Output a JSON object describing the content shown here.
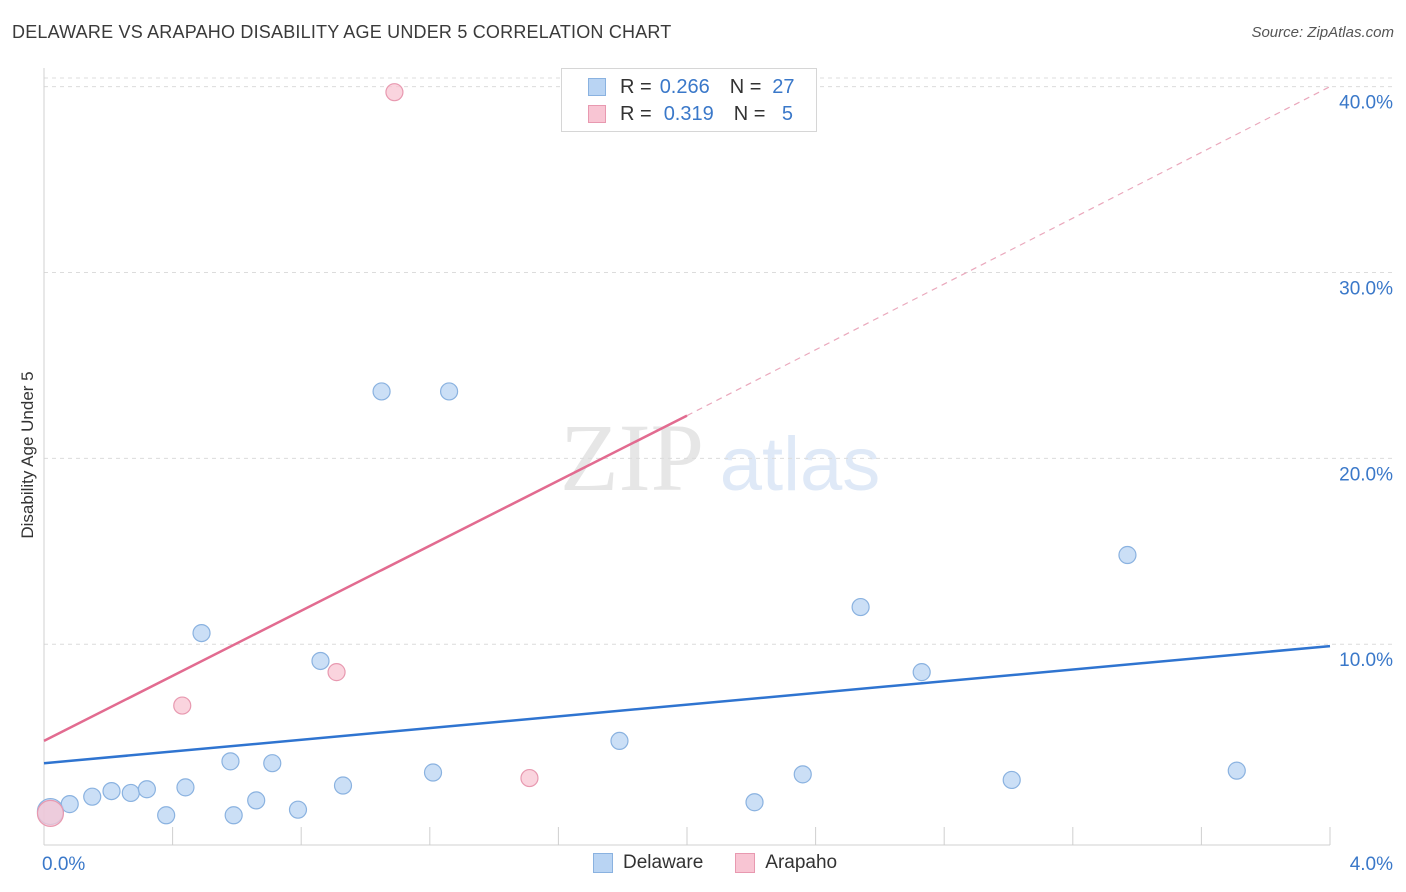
{
  "title": "DELAWARE VS ARAPAHO DISABILITY AGE UNDER 5 CORRELATION CHART",
  "source": "Source: ZipAtlas.com",
  "watermark": {
    "zip": "ZIP",
    "atlas": "atlas"
  },
  "legend": {
    "r_label": "R =",
    "n_label": "N =",
    "rows": [
      {
        "name": "Delaware",
        "r": "0.266",
        "n": "27"
      },
      {
        "name": "Arapaho",
        "r": "0.319",
        "n": "5"
      }
    ]
  },
  "colors": {
    "delaware_fill": "#b9d4f3",
    "delaware_stroke": "#8ab2e0",
    "delaware_line": "#2f74d0",
    "arapaho_fill": "#f8c5d3",
    "arapaho_stroke": "#e899b0",
    "arapaho_line": "#e26b90",
    "axis_text": "#3a78c9",
    "grid": "#dcdcdc"
  },
  "chart_data": {
    "type": "scatter",
    "title": "DELAWARE VS ARAPAHO DISABILITY AGE UNDER 5 CORRELATION CHART",
    "xlabel": "",
    "ylabel": "Disability Age Under 5",
    "xlim": [
      0,
      4.0
    ],
    "ylim": [
      -0.8,
      41.0
    ],
    "x_tick_labels": [
      "0.0%",
      "4.0%"
    ],
    "y_ticks": [
      10,
      20,
      30,
      40
    ],
    "y_tick_labels": [
      "10.0%",
      "20.0%",
      "30.0%",
      "40.0%"
    ],
    "x_minor_ticks": [
      0.4,
      0.8,
      1.2,
      1.6,
      2.0,
      2.4,
      2.8,
      3.2,
      3.6,
      4.0
    ],
    "series": [
      {
        "name": "Delaware",
        "points": [
          {
            "x": 0.02,
            "y": 1.0,
            "big": true
          },
          {
            "x": 0.08,
            "y": 1.4
          },
          {
            "x": 0.15,
            "y": 1.8
          },
          {
            "x": 0.21,
            "y": 2.1
          },
          {
            "x": 0.27,
            "y": 2.0
          },
          {
            "x": 0.32,
            "y": 2.2
          },
          {
            "x": 0.38,
            "y": 0.8
          },
          {
            "x": 0.44,
            "y": 2.3
          },
          {
            "x": 0.49,
            "y": 10.6
          },
          {
            "x": 0.58,
            "y": 3.7
          },
          {
            "x": 0.59,
            "y": 0.8
          },
          {
            "x": 0.66,
            "y": 1.6
          },
          {
            "x": 0.71,
            "y": 3.6
          },
          {
            "x": 0.79,
            "y": 1.1
          },
          {
            "x": 0.86,
            "y": 9.1
          },
          {
            "x": 0.93,
            "y": 2.4
          },
          {
            "x": 1.05,
            "y": 23.6
          },
          {
            "x": 1.21,
            "y": 3.1
          },
          {
            "x": 1.26,
            "y": 23.6
          },
          {
            "x": 1.79,
            "y": 4.8
          },
          {
            "x": 2.21,
            "y": 1.5
          },
          {
            "x": 2.36,
            "y": 3.0
          },
          {
            "x": 2.54,
            "y": 12.0
          },
          {
            "x": 2.73,
            "y": 8.5
          },
          {
            "x": 3.01,
            "y": 2.7
          },
          {
            "x": 3.37,
            "y": 14.8
          },
          {
            "x": 3.71,
            "y": 3.2
          }
        ],
        "trend": {
          "x1": 0.0,
          "y1": 3.6,
          "x2": 4.0,
          "y2": 9.9
        }
      },
      {
        "name": "Arapaho",
        "points": [
          {
            "x": 0.02,
            "y": 0.9,
            "big": true
          },
          {
            "x": 0.43,
            "y": 6.7
          },
          {
            "x": 0.91,
            "y": 8.5
          },
          {
            "x": 1.09,
            "y": 39.7
          },
          {
            "x": 1.51,
            "y": 2.8
          }
        ],
        "trend": {
          "x1": 0.0,
          "y1": 4.8,
          "x2": 2.0,
          "y2": 22.3
        },
        "trend_extension": {
          "x1": 2.0,
          "y1": 22.3,
          "x2": 4.0,
          "y2": 40.0
        }
      }
    ]
  }
}
